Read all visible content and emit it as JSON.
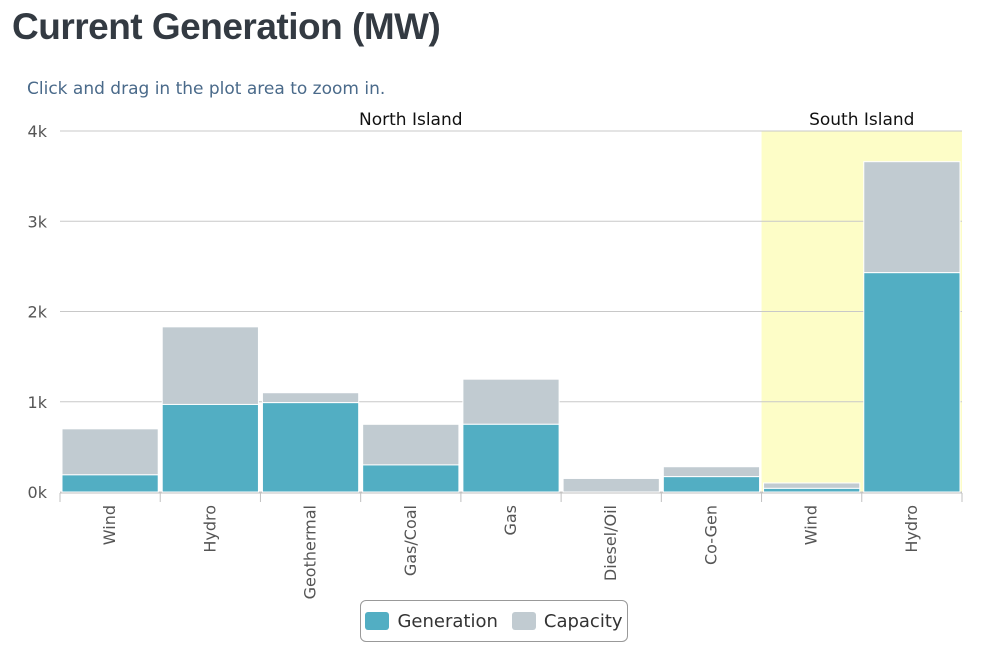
{
  "page": {
    "title": "Current Generation (MW)",
    "hint": "Click and drag in the plot area to zoom in."
  },
  "colors": {
    "generation": "#52aec3",
    "capacity": "#c1cbd1",
    "south_band": "#fdfdc7",
    "grid": "#c8c8c8",
    "axis_text": "#555555",
    "group_text": "#111111"
  },
  "chart_data": {
    "type": "bar",
    "stacked": true,
    "title": "Current Generation (MW)",
    "xlabel": "",
    "ylabel": "",
    "ylim": [
      0,
      4000
    ],
    "yticks": [
      {
        "value": 0,
        "label": "0k"
      },
      {
        "value": 1000,
        "label": "1k"
      },
      {
        "value": 2000,
        "label": "2k"
      },
      {
        "value": 3000,
        "label": "3k"
      },
      {
        "value": 4000,
        "label": "4k"
      }
    ],
    "grid": true,
    "legend_position": "bottom-center",
    "groups": [
      {
        "name": "North Island",
        "start": 0,
        "end": 6,
        "highlight": false
      },
      {
        "name": "South Island",
        "start": 7,
        "end": 8,
        "highlight": true
      }
    ],
    "categories": [
      "Wind",
      "Hydro",
      "Geothermal",
      "Gas/Coal",
      "Gas",
      "Diesel/Oil",
      "Co-Gen",
      "Wind",
      "Hydro"
    ],
    "series": [
      {
        "name": "Generation",
        "values": [
          190,
          970,
          990,
          300,
          750,
          0,
          170,
          40,
          2430
        ]
      },
      {
        "name": "Capacity",
        "values": [
          510,
          860,
          110,
          450,
          500,
          150,
          110,
          60,
          1230
        ]
      }
    ]
  }
}
